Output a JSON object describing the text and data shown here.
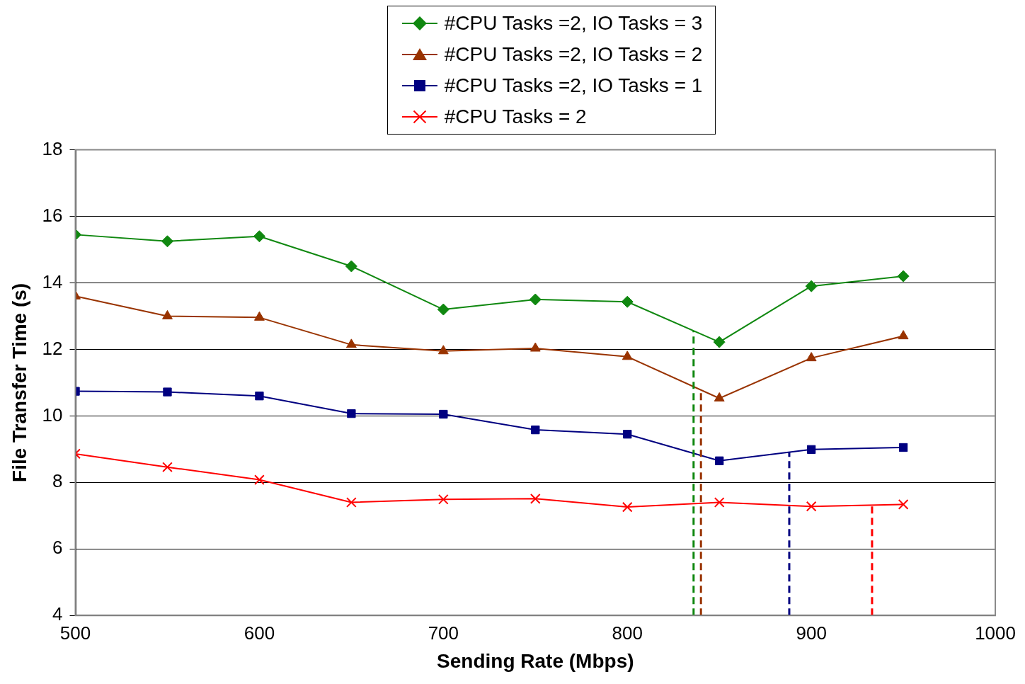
{
  "chart_data": {
    "type": "line",
    "xlabel": "Sending Rate (Mbps)",
    "ylabel": "File Transfer Time (s)",
    "x": [
      500,
      550,
      600,
      650,
      700,
      750,
      800,
      850,
      900,
      950
    ],
    "series": [
      {
        "name": "#CPU Tasks =2, IO Tasks = 3",
        "color": "#108810",
        "marker": "diamond",
        "values": [
          15.45,
          15.25,
          15.4,
          14.5,
          13.2,
          13.5,
          13.43,
          12.22,
          13.9,
          14.2
        ]
      },
      {
        "name": "#CPU Tasks =2, IO Tasks = 2",
        "color": "#993300",
        "marker": "triangle",
        "values": [
          13.6,
          13.0,
          12.96,
          12.14,
          11.95,
          12.03,
          11.78,
          10.53,
          11.74,
          12.4
        ]
      },
      {
        "name": "#CPU Tasks =2, IO Tasks = 1",
        "color": "#000080",
        "marker": "square",
        "values": [
          10.74,
          10.72,
          10.6,
          10.07,
          10.05,
          9.58,
          9.45,
          8.65,
          8.99,
          9.05
        ]
      },
      {
        "name": "#CPU Tasks = 2",
        "color": "#ff0000",
        "marker": "cross",
        "values": [
          8.86,
          8.46,
          8.08,
          7.4,
          7.49,
          7.51,
          7.26,
          7.4,
          7.28,
          7.34
        ]
      }
    ],
    "xlim": [
      500,
      1000
    ],
    "xticks": [
      500,
      600,
      700,
      800,
      900,
      1000
    ],
    "ylim": [
      4,
      18
    ],
    "yticks": [
      4,
      6,
      8,
      10,
      12,
      14,
      16,
      18
    ],
    "grid": "y",
    "legend": "top",
    "ref_lines": [
      {
        "axis": "x",
        "value": 836,
        "color": "#108810",
        "line_style": "dashed"
      },
      {
        "axis": "x",
        "value": 840,
        "color": "#993300",
        "line_style": "dashed"
      },
      {
        "axis": "x",
        "value": 888,
        "color": "#000080",
        "line_style": "dashed"
      },
      {
        "axis": "x",
        "value": 933,
        "color": "#ff0000",
        "line_style": "dashed"
      }
    ]
  }
}
